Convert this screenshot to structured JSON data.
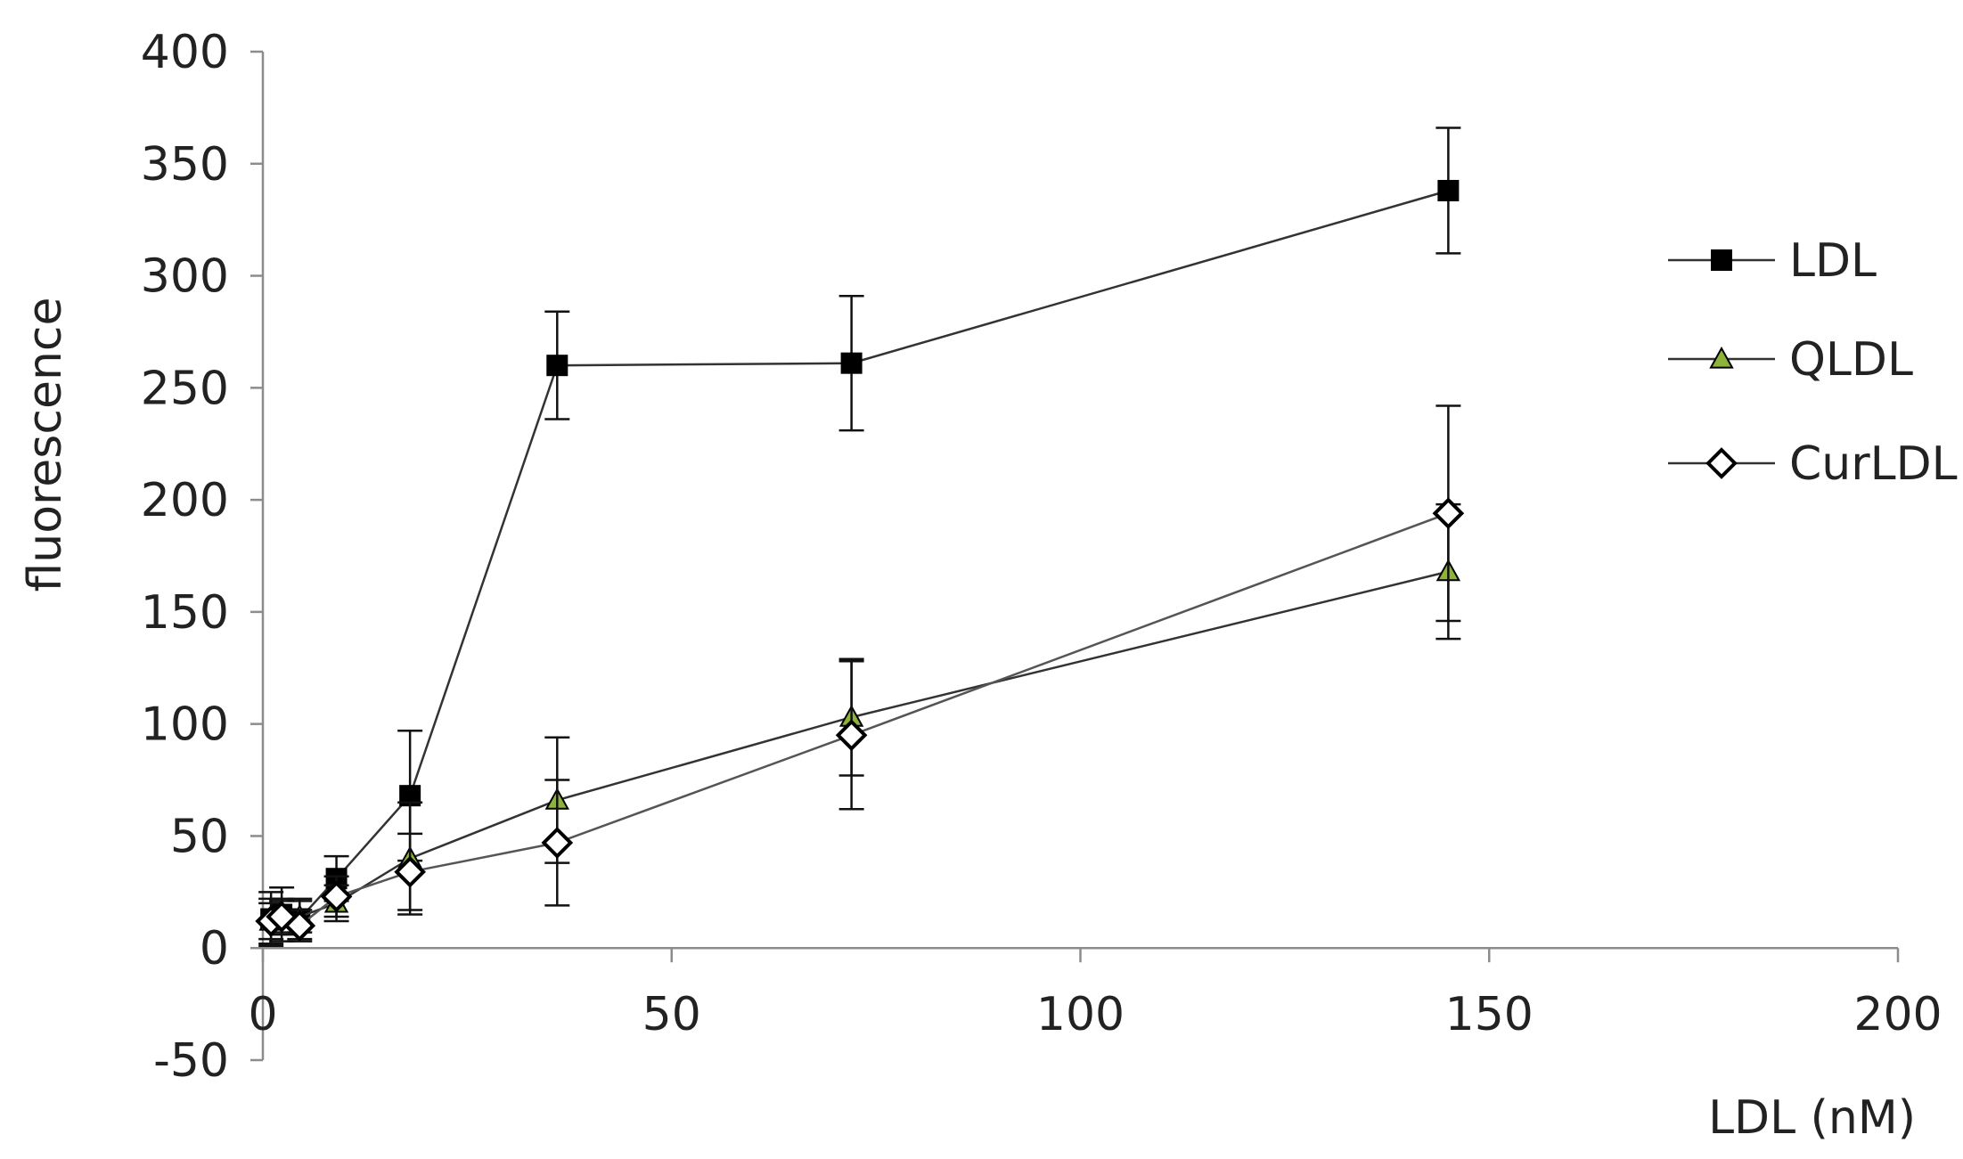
{
  "chart_data": {
    "type": "line",
    "xlabel": "LDL (nM)",
    "ylabel": "fluorescence",
    "xlim": [
      0,
      200
    ],
    "ylim": [
      -50,
      400
    ],
    "x_ticks": [
      0,
      50,
      100,
      150,
      200
    ],
    "y_ticks": [
      -50,
      0,
      50,
      100,
      150,
      200,
      250,
      300,
      350,
      400
    ],
    "grid": false,
    "legend_position": "right",
    "series": [
      {
        "name": "LDL",
        "marker": "square-filled",
        "color": "#000000",
        "points": [
          {
            "x": 1,
            "y": 13,
            "err": 12
          },
          {
            "x": 2.3,
            "y": 15,
            "err": 12
          },
          {
            "x": 4.5,
            "y": 13,
            "err": 9
          },
          {
            "x": 9,
            "y": 31,
            "err": 10
          },
          {
            "x": 18,
            "y": 68,
            "err": 29
          },
          {
            "x": 36,
            "y": 260,
            "err": 24
          },
          {
            "x": 72,
            "y": 261,
            "err": 30
          },
          {
            "x": 145,
            "y": 338,
            "err": 28
          }
        ]
      },
      {
        "name": "QLDL",
        "marker": "triangle-filled",
        "color": "#8db33a",
        "points": [
          {
            "x": 1,
            "y": 12,
            "err": 10
          },
          {
            "x": 2.3,
            "y": 14,
            "err": 8
          },
          {
            "x": 4.5,
            "y": 14,
            "err": 7
          },
          {
            "x": 9,
            "y": 20,
            "err": 8
          },
          {
            "x": 18,
            "y": 40,
            "err": 25
          },
          {
            "x": 36,
            "y": 66,
            "err": 28
          },
          {
            "x": 72,
            "y": 103,
            "err": 26
          },
          {
            "x": 145,
            "y": 168,
            "err": 30
          }
        ]
      },
      {
        "name": "CurLDL",
        "marker": "diamond-open",
        "color": "#ffffff",
        "points": [
          {
            "x": 1,
            "y": 12,
            "err": 8
          },
          {
            "x": 2.3,
            "y": 14,
            "err": 7
          },
          {
            "x": 4.5,
            "y": 10,
            "err": 7
          },
          {
            "x": 9,
            "y": 23,
            "err": 9
          },
          {
            "x": 18,
            "y": 34,
            "err": 17
          },
          {
            "x": 36,
            "y": 47,
            "err": 28
          },
          {
            "x": 72,
            "y": 95,
            "err": 33
          },
          {
            "x": 145,
            "y": 194,
            "err": 48
          }
        ]
      }
    ]
  }
}
